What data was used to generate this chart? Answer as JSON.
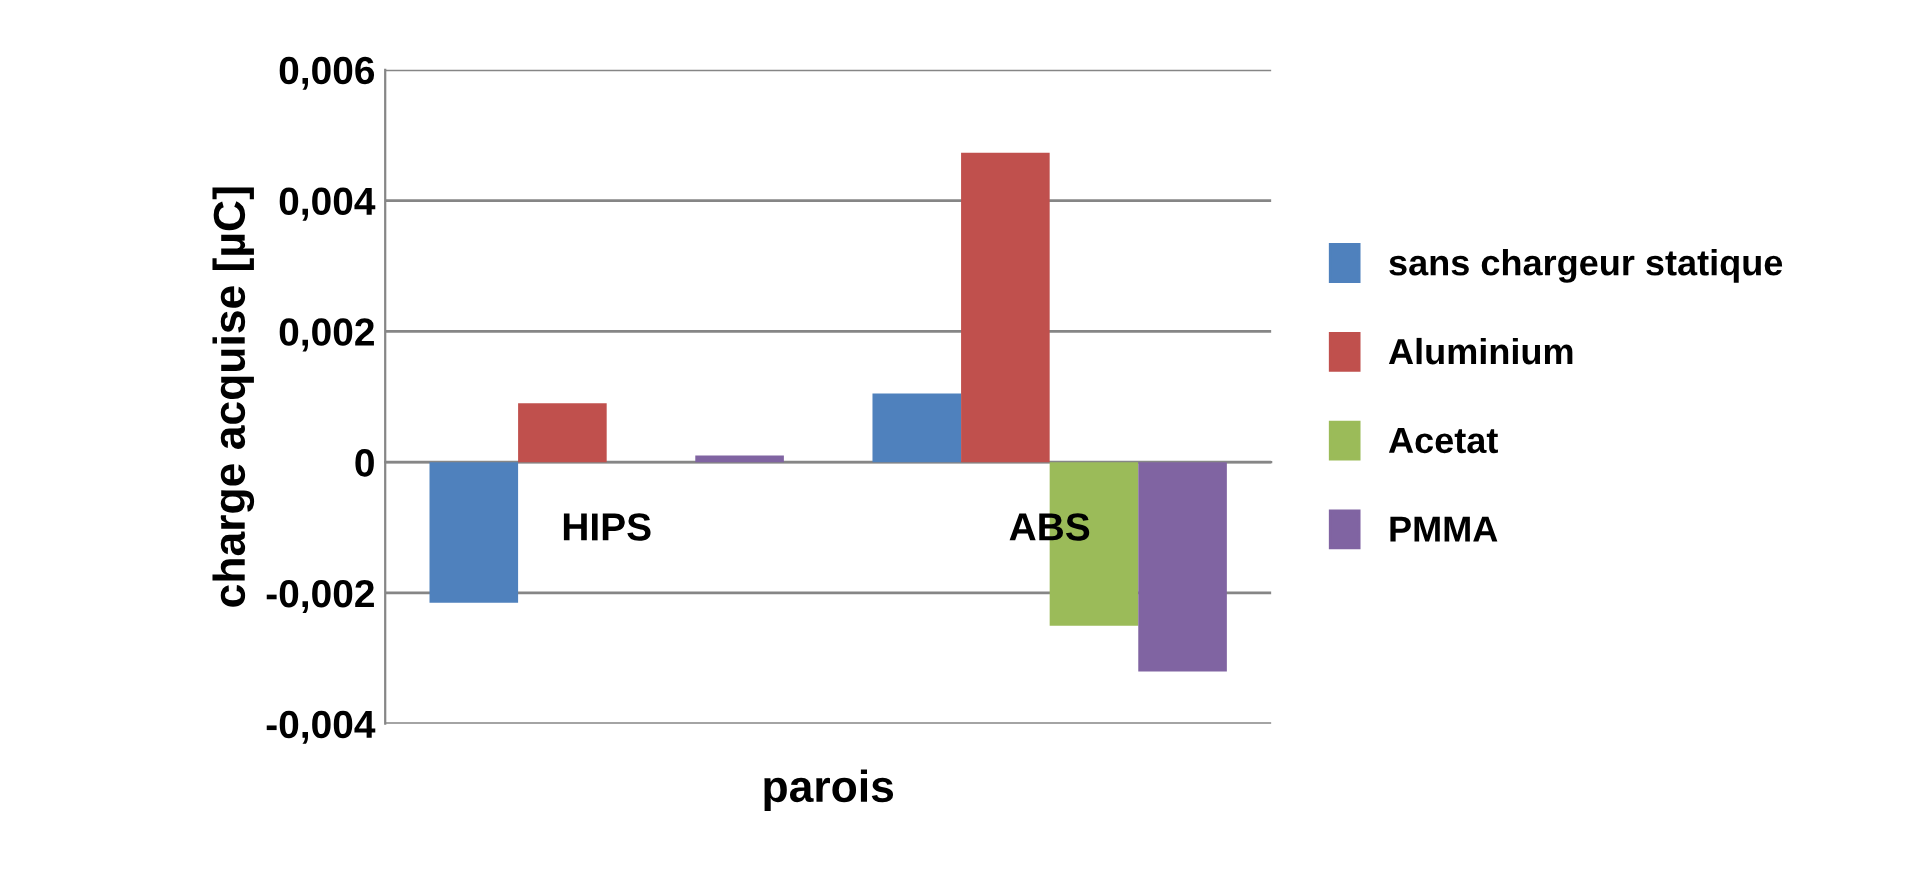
{
  "chart_data": {
    "type": "bar",
    "xlabel": "parois",
    "ylabel": "charge acquise [µC]",
    "categories": [
      "HIPS",
      "ABS"
    ],
    "series": [
      {
        "name": "sans chargeur statique",
        "color": "#4f81bd",
        "values": [
          -0.00215,
          0.00105
        ]
      },
      {
        "name": "Aluminium",
        "color": "#c0504d",
        "values": [
          0.0009,
          0.00473
        ]
      },
      {
        "name": "Acetat",
        "color": "#9bbb59",
        "values": [
          0,
          -0.0025
        ]
      },
      {
        "name": "PMMA",
        "color": "#8064a2",
        "values": [
          0.0001,
          -0.0032
        ]
      }
    ],
    "ylim": [
      -0.004,
      0.006
    ],
    "yticks": [
      {
        "value": -0.004,
        "label": "-0,004"
      },
      {
        "value": -0.002,
        "label": "-0,002"
      },
      0,
      {
        "value": 0.002,
        "label": "0,002"
      },
      {
        "value": 0.004,
        "label": "0,004"
      },
      {
        "value": 0.006,
        "label": "0,006"
      }
    ],
    "grid": "y",
    "legend": "right"
  }
}
